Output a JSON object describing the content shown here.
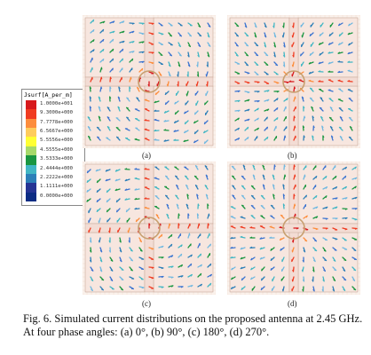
{
  "legend": {
    "title": "Jsurf[A_per_m]",
    "values": [
      "1.0000e+001",
      "9.3000e+000",
      "7.7778e+000",
      "6.5667e+000",
      "5.5556e+000",
      "4.5555e+000",
      "3.5333e+000",
      "2.4444e+000",
      "2.2222e+000",
      "1.1111e+000",
      "0.0000e+000"
    ],
    "colors": [
      "#d7191c",
      "#f03b20",
      "#fd8d3c",
      "#fecc5c",
      "#ffff33",
      "#a6d96a",
      "#1a9641",
      "#41b6c4",
      "#2c7fb8",
      "#253494",
      "#0c2c84"
    ]
  },
  "panels": [
    {
      "label": "(a)"
    },
    {
      "label": "(b)"
    },
    {
      "label": "(c)"
    },
    {
      "label": "(d)"
    }
  ],
  "caption": {
    "line1": "Fig. 6.  Simulated current distributions on the proposed antenna at 2.45 GHz.",
    "line2": "At four phase angles: (a) 0°, (b) 90°, (c) 180°, (d) 270°."
  }
}
